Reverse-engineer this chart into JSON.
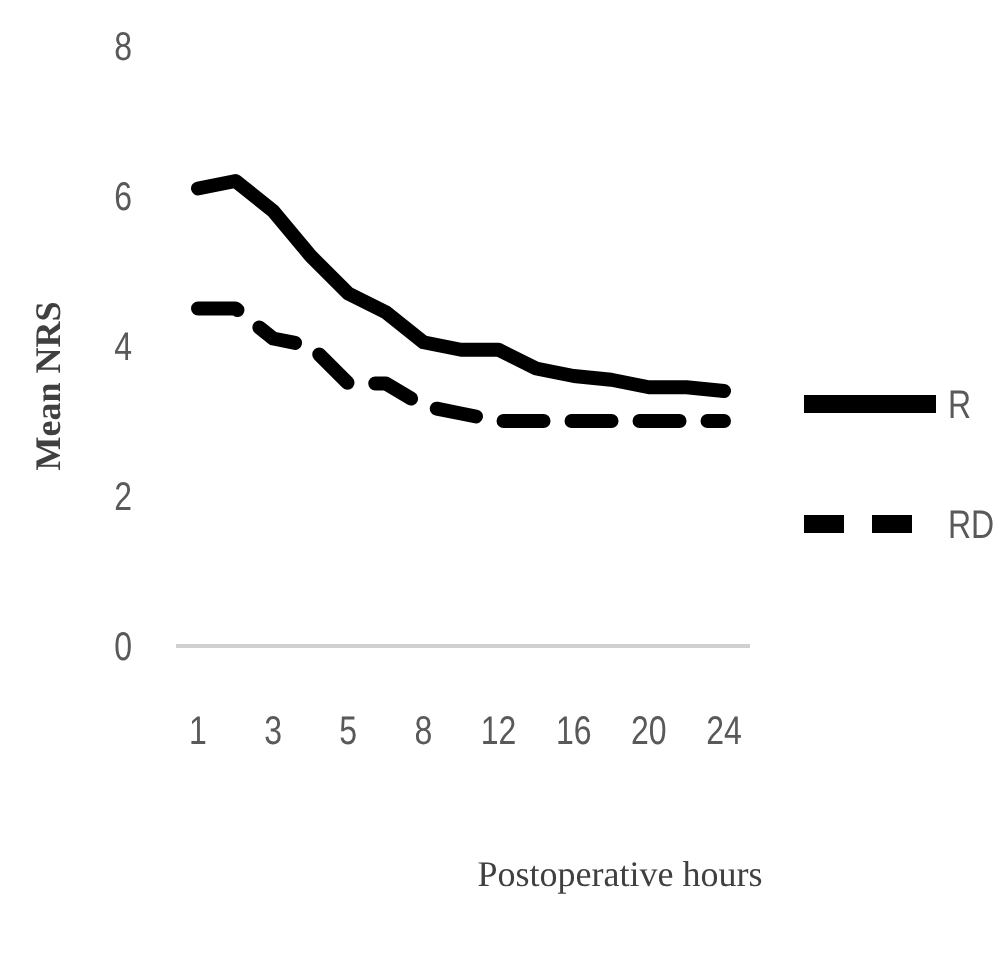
{
  "chart_data": {
    "type": "line",
    "xlabel": "Postoperative hours",
    "ylabel": "Mean NRS",
    "categories": [
      "1",
      null,
      "3",
      null,
      "5",
      null,
      "8",
      null,
      "12",
      null,
      "16",
      null,
      "20",
      null,
      "24"
    ],
    "series": [
      {
        "name": "R",
        "color": "#000000",
        "line_style": "solid",
        "values": [
          6.1,
          6.2,
          5.8,
          5.2,
          4.7,
          4.45,
          4.05,
          3.95,
          3.95,
          3.7,
          3.6,
          3.55,
          3.45,
          3.45,
          3.4
        ]
      },
      {
        "name": "RD",
        "color": "#000000",
        "line_style": "dashed",
        "values": [
          4.5,
          4.5,
          4.1,
          4.0,
          3.5,
          3.5,
          3.2,
          3.1,
          3.0,
          3.0,
          3.0,
          3.0,
          3.0,
          3.0,
          3.0
        ]
      }
    ],
    "ylim": [
      0,
      8
    ],
    "yticks": [
      0,
      2,
      4,
      6,
      8
    ],
    "grid": false,
    "legend": "right",
    "marker": "none"
  }
}
